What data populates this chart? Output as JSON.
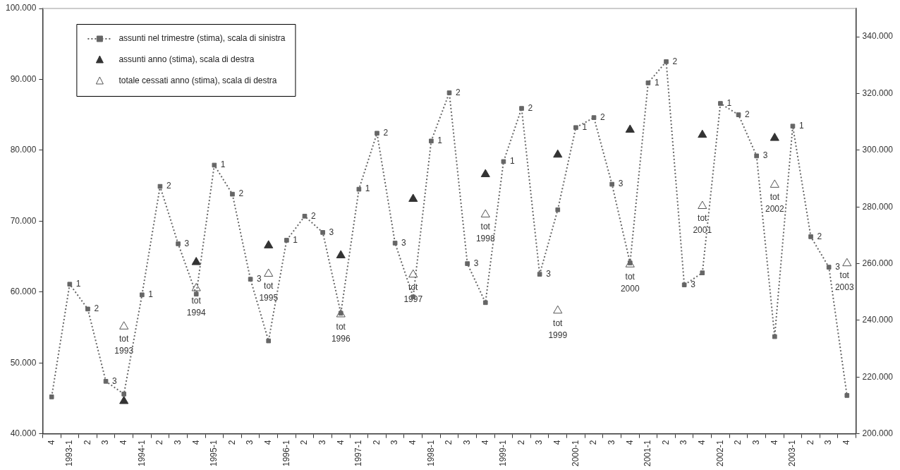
{
  "chart_data": {
    "type": "line",
    "categories": [
      "4",
      "1993-1",
      "2",
      "3",
      "4",
      "1994-1",
      "2",
      "3",
      "4",
      "1995-1",
      "2",
      "3",
      "4",
      "1996-1",
      "2",
      "3",
      "4",
      "1997-1",
      "2",
      "3",
      "4",
      "1998-1",
      "2",
      "3",
      "4",
      "1999-1",
      "2",
      "3",
      "4",
      "2000-1",
      "2",
      "3",
      "4",
      "2001-1",
      "2",
      "3",
      "4",
      "2002-1",
      "2",
      "3",
      "4",
      "2003-1",
      "2",
      "3",
      "4"
    ],
    "series": [
      {
        "name": "assunti nel trimestre (stima), scala di sinistra",
        "type": "line",
        "color": "#666666",
        "marker": "square",
        "line_style": "dotted",
        "values": [
          45200,
          61100,
          57600,
          47400,
          45600,
          59600,
          74900,
          66800,
          59700,
          77900,
          73800,
          61800,
          53100,
          67300,
          70700,
          68400,
          57000,
          74500,
          82400,
          66900,
          59300,
          81300,
          88100,
          64000,
          58500,
          78400,
          85900,
          62500,
          71600,
          83200,
          84600,
          75200,
          64100,
          89500,
          92500,
          61000,
          62700,
          86600,
          85000,
          79200,
          53700,
          83400,
          67800,
          63500,
          45400
        ]
      },
      {
        "name": "assunti anno (stima), scala di destra",
        "type": "scatter",
        "axis": "y2",
        "color": "#333333",
        "marker": "triangle",
        "values": [
          null,
          null,
          null,
          null,
          211500,
          null,
          null,
          null,
          260500,
          null,
          null,
          null,
          266400,
          null,
          null,
          null,
          262900,
          null,
          null,
          null,
          282800,
          null,
          null,
          null,
          291500,
          null,
          null,
          null,
          298400,
          null,
          null,
          null,
          307200,
          null,
          null,
          null,
          305400,
          null,
          null,
          null,
          304300,
          null,
          null,
          null,
          null
        ]
      },
      {
        "name": "totale cessati anno (stima), scala di destra",
        "type": "scatter",
        "axis": "y2",
        "color": "#555555",
        "marker": "triangle",
        "values": [
          null,
          null,
          null,
          null,
          237800,
          null,
          null,
          null,
          251300,
          null,
          null,
          null,
          256400,
          null,
          null,
          null,
          242100,
          null,
          null,
          null,
          256100,
          null,
          null,
          null,
          277300,
          null,
          null,
          null,
          243400,
          null,
          null,
          null,
          259700,
          null,
          null,
          null,
          280300,
          null,
          null,
          null,
          287800,
          null,
          null,
          null,
          260100
        ],
        "value_labels": [
          null,
          null,
          null,
          null,
          "tot 1993",
          null,
          null,
          null,
          "tot 1994",
          null,
          null,
          null,
          "tot 1995",
          null,
          null,
          null,
          "tot 1996",
          null,
          null,
          null,
          "tot 1997",
          null,
          null,
          null,
          "tot 1998",
          null,
          null,
          null,
          "tot 1999",
          null,
          null,
          null,
          "tot 2000",
          null,
          null,
          null,
          "tot 2001",
          null,
          null,
          null,
          "tot 2002",
          null,
          null,
          null,
          "tot 2003"
        ]
      }
    ],
    "ylim": [
      40000,
      100000
    ],
    "yticks": [
      {
        "value": 40000,
        "label": "40.000"
      },
      {
        "value": 50000,
        "label": "50.000"
      },
      {
        "value": 60000,
        "label": "60.000"
      },
      {
        "value": 70000,
        "label": "70.000"
      },
      {
        "value": 80000,
        "label": "80.000"
      },
      {
        "value": 90000,
        "label": "90.000"
      },
      {
        "value": 100000,
        "label": "100.000"
      }
    ],
    "y2lim": [
      200000,
      350000
    ],
    "y2ticks": [
      {
        "value": 200000,
        "label": "200.000"
      },
      {
        "value": 220000,
        "label": "220.000"
      },
      {
        "value": 240000,
        "label": "240.000"
      },
      {
        "value": 260000,
        "label": "260.000"
      },
      {
        "value": 280000,
        "label": "280.000"
      },
      {
        "value": 300000,
        "label": "300.000"
      },
      {
        "value": 320000,
        "label": "320.000"
      },
      {
        "value": 340000,
        "label": "340.000"
      }
    ],
    "annotations": [
      {
        "text": "1",
        "x": "1993-1",
        "y": 61100
      },
      "2",
      "3",
      {
        "text": "1",
        "x": "1994-1",
        "y": 59600
      },
      "2",
      "3",
      {
        "text": "1",
        "x": "1995-1",
        "y": 77900
      },
      "2",
      "3",
      {
        "text": "1",
        "x": "1996-1",
        "y": 67300
      },
      "2",
      "3",
      {
        "text": "1",
        "x": "1997-1",
        "y": 74500
      },
      "2",
      "3",
      {
        "text": "1",
        "x": "1998-1",
        "y": 81300
      },
      "2",
      "3",
      {
        "text": "1",
        "x": "1999-1",
        "y": 78400
      },
      "2",
      "3",
      {
        "text": "1",
        "x": "2000-1",
        "y": 83200
      },
      "2",
      "3",
      {
        "text": "1",
        "x": "2001-1",
        "y": 89500
      },
      "2",
      "3",
      {
        "text": "1",
        "x": "2002-1",
        "y": 86600
      },
      "2",
      "3",
      {
        "text": "1",
        "x": "2003-1",
        "y": 83400
      },
      "2",
      "3"
    ],
    "legend": "top left"
  }
}
